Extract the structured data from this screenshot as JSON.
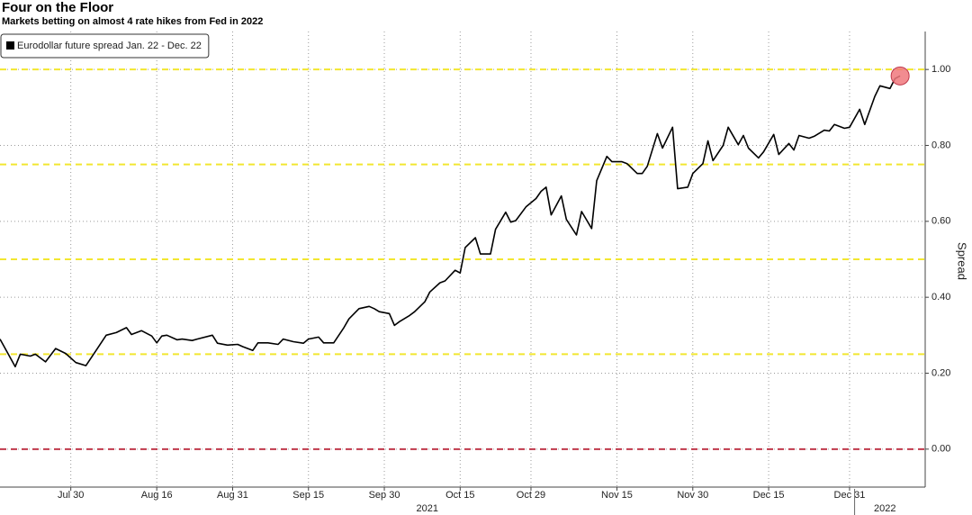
{
  "chart_data": {
    "type": "line",
    "title": "Four on the Floor",
    "subtitle": "Markets betting on almost 4 rate hikes from Fed in 2022",
    "ylabel": "Spread",
    "legend": "top-left",
    "grid": true,
    "series": [
      {
        "name": "Eurodollar future spread Jan. 22 - Dec. 22",
        "color": "#000000",
        "x": [
          "2021-07-16",
          "2021-07-19",
          "2021-07-20",
          "2021-07-22",
          "2021-07-23",
          "2021-07-25",
          "2021-07-27",
          "2021-07-29",
          "2021-07-31",
          "2021-08-02",
          "2021-08-04",
          "2021-08-06",
          "2021-08-08",
          "2021-08-10",
          "2021-08-11",
          "2021-08-13",
          "2021-08-15",
          "2021-08-16",
          "2021-08-17",
          "2021-08-18",
          "2021-08-20",
          "2021-08-21",
          "2021-08-23",
          "2021-08-24",
          "2021-08-27",
          "2021-08-28",
          "2021-08-30",
          "2021-09-01",
          "2021-09-02",
          "2021-09-04",
          "2021-09-05",
          "2021-09-07",
          "2021-09-09",
          "2021-09-10",
          "2021-09-12",
          "2021-09-14",
          "2021-09-15",
          "2021-09-17",
          "2021-09-18",
          "2021-09-20",
          "2021-09-22",
          "2021-09-23",
          "2021-09-25",
          "2021-09-27",
          "2021-09-28",
          "2021-09-29",
          "2021-10-01",
          "2021-10-02",
          "2021-10-03",
          "2021-10-05",
          "2021-10-06",
          "2021-10-08",
          "2021-10-09",
          "2021-10-11",
          "2021-10-12",
          "2021-10-14",
          "2021-10-15",
          "2021-10-16",
          "2021-10-18",
          "2021-10-19",
          "2021-10-21",
          "2021-10-22",
          "2021-10-24",
          "2021-10-25",
          "2021-10-26",
          "2021-10-28",
          "2021-10-30",
          "2021-10-31",
          "2021-11-01",
          "2021-11-02",
          "2021-11-04",
          "2021-11-05",
          "2021-11-07",
          "2021-11-08",
          "2021-11-10",
          "2021-11-11",
          "2021-11-13",
          "2021-11-14",
          "2021-11-16",
          "2021-11-17",
          "2021-11-19",
          "2021-11-20",
          "2021-11-21",
          "2021-11-23",
          "2021-11-24",
          "2021-11-26",
          "2021-11-27",
          "2021-11-29",
          "2021-11-30",
          "2021-12-02",
          "2021-12-03",
          "2021-12-04",
          "2021-12-06",
          "2021-12-07",
          "2021-12-09",
          "2021-12-10",
          "2021-12-11",
          "2021-12-13",
          "2021-12-14",
          "2021-12-16",
          "2021-12-17",
          "2021-12-19",
          "2021-12-20",
          "2021-12-21",
          "2021-12-23",
          "2021-12-24",
          "2021-12-26",
          "2021-12-27",
          "2021-12-28",
          "2021-12-30",
          "2021-12-31",
          "2022-01-02",
          "2022-01-03",
          "2022-01-05",
          "2022-01-06",
          "2022-01-08",
          "2022-01-09",
          "2022-01-10"
        ],
        "values": [
          0.29,
          0.217,
          0.25,
          0.245,
          0.25,
          0.23,
          0.265,
          0.252,
          0.228,
          0.22,
          0.26,
          0.3,
          0.307,
          0.32,
          0.302,
          0.312,
          0.298,
          0.28,
          0.298,
          0.3,
          0.288,
          0.29,
          0.286,
          0.29,
          0.3,
          0.279,
          0.274,
          0.276,
          0.27,
          0.26,
          0.28,
          0.28,
          0.276,
          0.29,
          0.283,
          0.279,
          0.29,
          0.295,
          0.28,
          0.28,
          0.32,
          0.343,
          0.37,
          0.376,
          0.37,
          0.362,
          0.357,
          0.326,
          0.336,
          0.352,
          0.362,
          0.388,
          0.414,
          0.438,
          0.443,
          0.471,
          0.464,
          0.531,
          0.557,
          0.514,
          0.514,
          0.579,
          0.624,
          0.598,
          0.602,
          0.638,
          0.66,
          0.679,
          0.69,
          0.617,
          0.667,
          0.605,
          0.564,
          0.626,
          0.581,
          0.707,
          0.771,
          0.757,
          0.757,
          0.752,
          0.726,
          0.726,
          0.745,
          0.831,
          0.793,
          0.848,
          0.686,
          0.69,
          0.726,
          0.752,
          0.812,
          0.76,
          0.8,
          0.848,
          0.802,
          0.826,
          0.793,
          0.767,
          0.783,
          0.829,
          0.776,
          0.805,
          0.788,
          0.826,
          0.819,
          0.824,
          0.84,
          0.838,
          0.855,
          0.845,
          0.848,
          0.895,
          0.855,
          0.929,
          0.957,
          0.95,
          0.976,
          0.983
        ]
      }
    ],
    "highlight_last": {
      "color": "#f0787c"
    },
    "reference_lines": [
      {
        "value": 1.0,
        "color": "#f2e630"
      },
      {
        "value": 0.75,
        "color": "#f2e630"
      },
      {
        "value": 0.5,
        "color": "#f2e630"
      },
      {
        "value": 0.25,
        "color": "#f2e630"
      },
      {
        "value": 0,
        "color": "#c0394b"
      }
    ],
    "xlim": [
      "2021-07-16",
      "2022-01-13"
    ],
    "xticks": [
      {
        "value": "2021-07-30",
        "label": "Jul 30"
      },
      {
        "value": "2021-08-16",
        "label": "Aug 16"
      },
      {
        "value": "2021-08-31",
        "label": "Aug 31"
      },
      {
        "value": "2021-09-15",
        "label": "Sep 15"
      },
      {
        "value": "2021-09-30",
        "label": "Sep 30"
      },
      {
        "value": "2021-10-15",
        "label": "Oct 15"
      },
      {
        "value": "2021-10-29",
        "label": "Oct 29"
      },
      {
        "value": "2021-11-15",
        "label": "Nov 15"
      },
      {
        "value": "2021-11-30",
        "label": "Nov 30"
      },
      {
        "value": "2021-12-15",
        "label": "Dec 15"
      },
      {
        "value": "2021-12-31",
        "label": "Dec 31"
      }
    ],
    "years": [
      "2021",
      "2022"
    ],
    "ylim": [
      -0.1,
      1.1
    ],
    "yticks": [
      {
        "value": 0,
        "label": "0.00"
      },
      {
        "value": 0.2,
        "label": "0.20"
      },
      {
        "value": 0.4,
        "label": "0.40"
      },
      {
        "value": 0.6,
        "label": "0.60"
      },
      {
        "value": 0.8,
        "label": "0.80"
      },
      {
        "value": 1.0,
        "label": "1.00"
      }
    ]
  }
}
